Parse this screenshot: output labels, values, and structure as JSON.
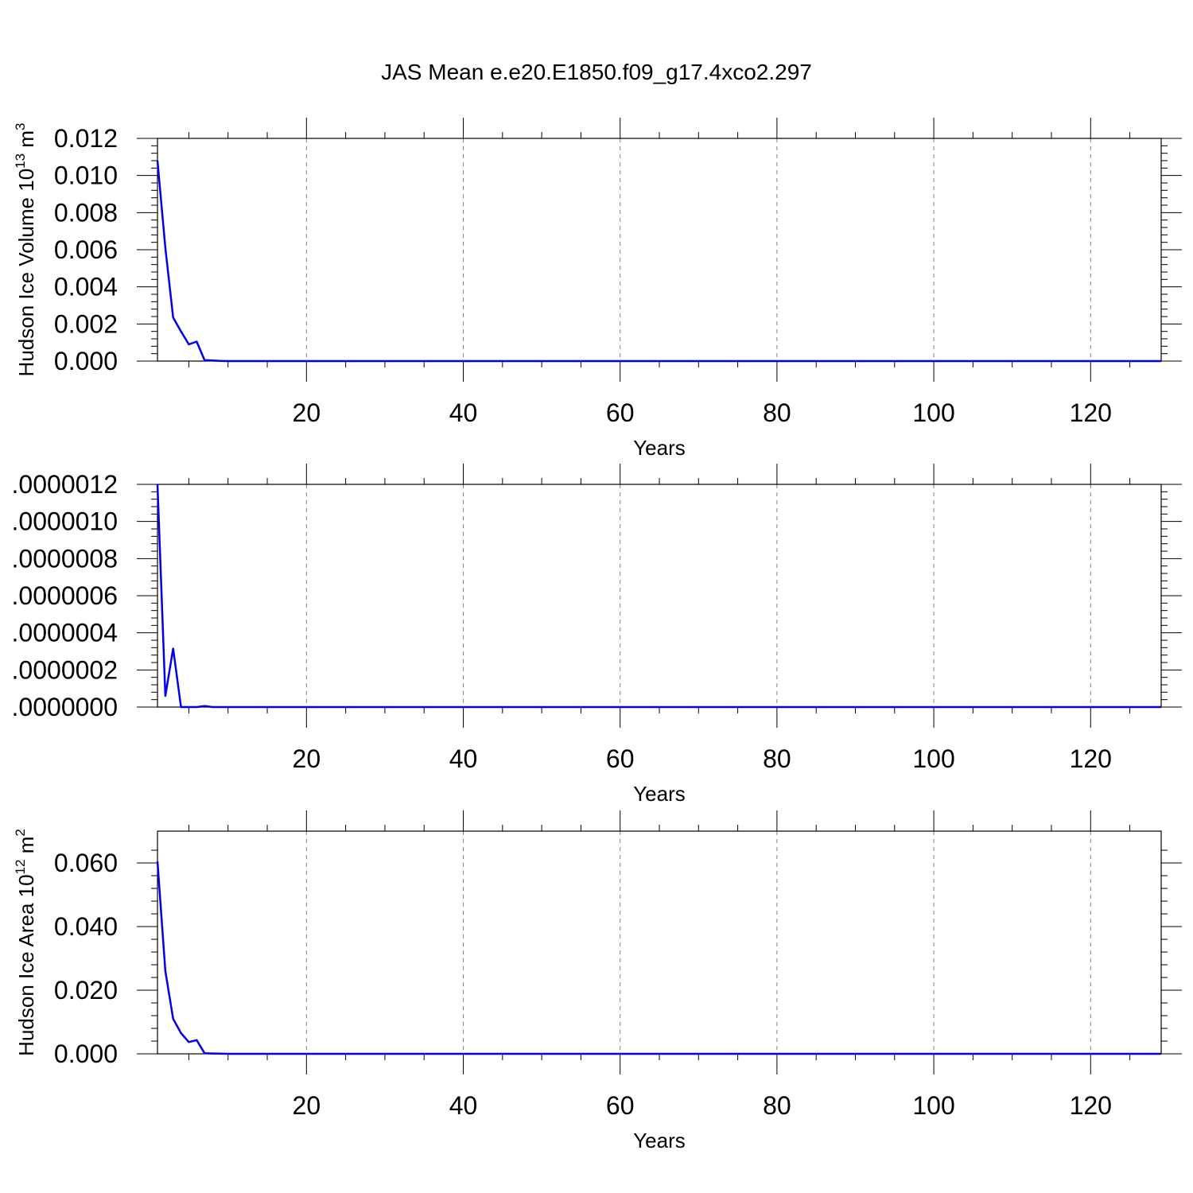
{
  "figure": {
    "title": "JAS Mean e.e20.E1850.f09_g17.4xco2.297"
  },
  "chart_data": [
    {
      "type": "line",
      "ylabel": "Hudson Ice Volume 10",
      "ylabel_exp": "13",
      "ylabel_unit": " m",
      "ylabel_unit_exp": "3",
      "xlabel": "Years",
      "xlim": [
        1,
        129
      ],
      "ylim": [
        0,
        0.012
      ],
      "x_ticks": [
        20,
        40,
        60,
        80,
        100,
        120
      ],
      "x_tick_labels": [
        "20",
        "40",
        "60",
        "80",
        "100",
        "120"
      ],
      "y_ticks": [
        0,
        0.002,
        0.004,
        0.006,
        0.008,
        0.01,
        0.012
      ],
      "y_tick_labels": [
        "0.000",
        "0.002",
        "0.004",
        "0.006",
        "0.008",
        "0.010",
        "0.012"
      ],
      "grid": "x-dashed",
      "series": [
        {
          "color": "#0000ee",
          "x": [
            1,
            2,
            3,
            4,
            5,
            6,
            7,
            8,
            9,
            10,
            129
          ],
          "values": [
            0.0108,
            0.0061,
            0.00235,
            0.0016,
            0.0009,
            0.00105,
            5e-05,
            3e-05,
            1e-05,
            0.0,
            0.0
          ]
        }
      ]
    },
    {
      "type": "line",
      "ylabel": "",
      "xlabel": "Years",
      "xlim": [
        1,
        129
      ],
      "ylim": [
        0,
        1.2e-06
      ],
      "x_ticks": [
        20,
        40,
        60,
        80,
        100,
        120
      ],
      "x_tick_labels": [
        "20",
        "40",
        "60",
        "80",
        "100",
        "120"
      ],
      "y_ticks": [
        0,
        2e-07,
        4e-07,
        6e-07,
        8e-07,
        1e-06,
        1.2e-06
      ],
      "y_tick_labels": [
        ".0000000",
        ".0000002",
        ".0000004",
        ".0000006",
        ".0000008",
        ".0000010",
        ".0000012"
      ],
      "grid": "x-dashed",
      "series": [
        {
          "color": "#0000ee",
          "x": [
            1,
            2,
            3,
            4,
            5,
            6,
            7,
            8,
            9,
            129
          ],
          "values": [
            1.2e-06,
            6e-08,
            3.15e-07,
            0.0,
            0.0,
            0.0,
            5e-09,
            0.0,
            0.0,
            0.0
          ]
        }
      ]
    },
    {
      "type": "line",
      "ylabel": "Hudson Ice Area 10",
      "ylabel_exp": "12",
      "ylabel_unit": " m",
      "ylabel_unit_exp": "2",
      "xlabel": "Years",
      "xlim": [
        1,
        129
      ],
      "ylim": [
        0,
        0.07
      ],
      "x_ticks": [
        20,
        40,
        60,
        80,
        100,
        120
      ],
      "x_tick_labels": [
        "20",
        "40",
        "60",
        "80",
        "100",
        "120"
      ],
      "y_ticks": [
        0,
        0.02,
        0.04,
        0.06
      ],
      "y_tick_labels": [
        "0.000",
        "0.020",
        "0.040",
        "0.060"
      ],
      "grid": "x-dashed",
      "series": [
        {
          "color": "#0000ee",
          "x": [
            1,
            2,
            3,
            4,
            5,
            6,
            7,
            8,
            9,
            10,
            129
          ],
          "values": [
            0.0605,
            0.026,
            0.011,
            0.0065,
            0.0037,
            0.0043,
            0.0002,
            0.0001,
            5e-05,
            0.0,
            0.0
          ]
        }
      ]
    }
  ]
}
